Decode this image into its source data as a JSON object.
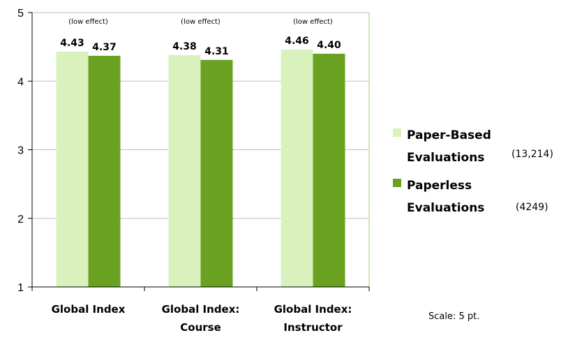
{
  "chart_data": {
    "type": "bar",
    "categories": [
      [
        "Global Index"
      ],
      [
        "Global Index:",
        "Course"
      ],
      [
        "Global Index:",
        "Instructor"
      ]
    ],
    "series": [
      {
        "name": "Paper-Based Evaluations",
        "count": "(13,214)",
        "color": "#d9f2bd",
        "values": [
          4.43,
          4.38,
          4.46
        ],
        "labels": [
          "4.43",
          "4.38",
          "4.46"
        ]
      },
      {
        "name": "Paperless Evaluations",
        "count": "(4249)",
        "color": "#6aa121",
        "values": [
          4.37,
          4.31,
          4.4
        ],
        "labels": [
          "4.37",
          "4.31",
          "4.40"
        ]
      }
    ],
    "annotations": [
      "(low effect)",
      "(low effect)",
      "(low effect)"
    ],
    "ylim": [
      1,
      5
    ],
    "yticks": [
      1,
      2,
      3,
      4,
      5
    ],
    "grid": true,
    "legend": "right",
    "title": "",
    "xlabel": "",
    "ylabel": ""
  },
  "scale_note": "Scale: 5 pt."
}
